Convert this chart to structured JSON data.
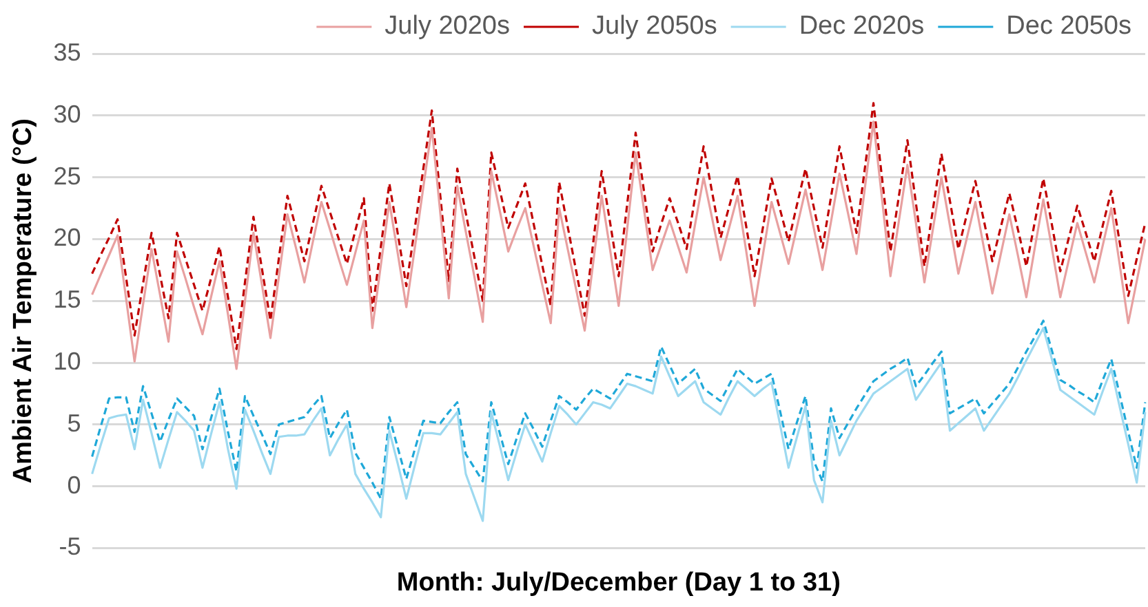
{
  "chart_data": {
    "type": "line",
    "xlabel": "Month: July/December (Day 1 to 31)",
    "ylabel": "Ambient Air Temperature (°C)",
    "ylim": [
      -5,
      35
    ],
    "yticks": [
      -5,
      0,
      5,
      10,
      15,
      20,
      25,
      30,
      35
    ],
    "tick_labels": "y",
    "grid": "y",
    "legend": "top",
    "marker": "none",
    "categories": [
      null,
      null,
      null,
      null,
      null,
      null,
      null,
      null,
      null,
      null,
      null,
      null,
      null,
      null,
      null,
      null,
      null,
      null,
      null,
      null,
      null,
      null,
      null,
      null,
      null,
      null,
      null,
      null,
      null,
      null,
      null,
      null,
      null,
      null,
      null,
      null,
      null,
      null,
      null,
      null,
      null,
      null,
      null,
      null,
      null,
      null,
      null,
      null,
      null,
      null,
      null,
      null,
      null,
      null,
      null,
      null,
      null,
      null,
      null,
      null,
      null,
      null,
      null,
      null,
      null,
      null,
      null,
      null,
      null,
      null,
      null,
      null,
      null,
      null,
      null,
      null,
      null,
      null,
      null,
      null,
      null,
      null,
      null,
      null,
      null,
      null,
      null,
      null,
      null,
      null,
      null,
      null,
      null,
      null,
      null,
      null,
      null,
      null,
      null,
      null,
      null,
      null,
      null,
      null,
      null,
      null,
      null,
      null,
      null,
      null,
      null,
      null,
      null,
      null,
      null,
      null,
      null,
      null,
      null,
      null,
      null,
      null,
      null,
      null,
      null
    ],
    "series": [
      {
        "name": "July 2020s",
        "color": "#e8a0a0",
        "line_style": "solid",
        "values": [
          15.5,
          17.1,
          18.7,
          20.3,
          15.2,
          10.1,
          14.7,
          19.2,
          15.5,
          11.7,
          19,
          16.8,
          14.5,
          12.3,
          15.3,
          18.2,
          13.9,
          9.5,
          15,
          20.5,
          16.3,
          12,
          17,
          22,
          19.3,
          16.5,
          19.8,
          23,
          20.8,
          18.5,
          16.3,
          18.9,
          21.5,
          12.8,
          17.9,
          23,
          18.8,
          14.5,
          19.3,
          24.2,
          29,
          22.1,
          15.2,
          24.3,
          20.6,
          17,
          13.3,
          25.5,
          22.3,
          19,
          20.8,
          22.5,
          19.4,
          16.3,
          13.2,
          22.5,
          19.2,
          15.9,
          12.6,
          18.1,
          23.5,
          19.1,
          14.6,
          20.8,
          27,
          22.3,
          17.5,
          19.5,
          21.5,
          19.4,
          17.3,
          21.2,
          25,
          21.7,
          18.3,
          20.9,
          23.5,
          19.1,
          14.6,
          18.8,
          23,
          20.5,
          18,
          21,
          24,
          20.8,
          17.5,
          21.4,
          25.3,
          22.1,
          18.8,
          24.2,
          29.5,
          23.3,
          17,
          21.5,
          26,
          21.3,
          16.5,
          20.8,
          25,
          21.1,
          17.2,
          20.1,
          23,
          19.3,
          15.6,
          18.8,
          22,
          18.7,
          15.3,
          19.3,
          23.2,
          19.3,
          15.3,
          18.3,
          21.3,
          18.9,
          16.5,
          19.5,
          22.5,
          17.9,
          13.2,
          16.6,
          20
        ]
      },
      {
        "name": "July 2050s",
        "color": "#c00000",
        "line_style": "dashed",
        "values": [
          17.2,
          18.7,
          20.1,
          21.6,
          16.9,
          12.2,
          16.4,
          20.5,
          17.1,
          13.6,
          20.5,
          18.4,
          16.3,
          14.2,
          16.8,
          19.4,
          15.3,
          11.1,
          16.5,
          21.8,
          17.6,
          13.4,
          18.5,
          23.5,
          20.9,
          18.2,
          21.3,
          24.3,
          22.2,
          20.1,
          18,
          20.7,
          23.3,
          14.2,
          19.4,
          24.5,
          20.4,
          16.2,
          20.9,
          25.7,
          30.4,
          23.5,
          16.6,
          25.7,
          22.1,
          18.6,
          15,
          27,
          24,
          20.9,
          22.7,
          24.5,
          21.2,
          17.9,
          14.6,
          24.6,
          21,
          17.4,
          13.8,
          19.7,
          25.5,
          21.3,
          17,
          22.8,
          28.6,
          23.8,
          19,
          21.2,
          23.3,
          21.3,
          19.2,
          23.4,
          27.5,
          23.8,
          20.1,
          22.6,
          25.1,
          21.1,
          17,
          21,
          24.9,
          22.4,
          19.8,
          22.8,
          25.7,
          22.5,
          19.3,
          23.4,
          27.5,
          24,
          20.5,
          25.8,
          31,
          25,
          19,
          23.5,
          28,
          22.9,
          17.8,
          22.4,
          26.9,
          23.1,
          19.2,
          22,
          24.7,
          21.5,
          18.2,
          21,
          23.7,
          20.8,
          17.8,
          21.4,
          24.9,
          21.2,
          17.4,
          20.1,
          22.7,
          20.5,
          18.2,
          21.1,
          23.9,
          19.7,
          15.4,
          18.4,
          21.3
        ]
      },
      {
        "name": "Dec 2020s",
        "color": "#9dd9f0",
        "line_style": "solid",
        "values": [
          1,
          3.3,
          5.5,
          5.7,
          5.8,
          3,
          7,
          4.3,
          1.5,
          3.8,
          6,
          5.3,
          4.5,
          1.5,
          4.2,
          6.8,
          3,
          -0.2,
          6.2,
          4.5,
          2.7,
          1,
          4,
          4.1,
          4.1,
          4.2,
          5.3,
          6.3,
          2.5,
          3.8,
          5,
          1,
          -0.2,
          -1.3,
          -2.5,
          4.5,
          1.8,
          -1,
          1.7,
          4.3,
          4.3,
          4.2,
          5.1,
          6,
          1,
          -0.9,
          -2.8,
          6,
          3.3,
          0.5,
          2.8,
          5,
          3.5,
          2,
          4.3,
          6.5,
          5.8,
          5,
          5.9,
          6.8,
          6.6,
          6.3,
          7.3,
          8.3,
          8.1,
          7.8,
          7.5,
          10.5,
          8.9,
          7.3,
          7.9,
          8.5,
          6.8,
          6.3,
          5.8,
          7.2,
          8.5,
          7.9,
          7.3,
          7.9,
          8.4,
          5,
          1.5,
          4,
          6.5,
          0.5,
          -1.3,
          5.3,
          2.5,
          3.9,
          5.3,
          6.4,
          7.5,
          8,
          8.5,
          9,
          9.5,
          7,
          8,
          9,
          10,
          4.5,
          5.1,
          5.7,
          6.3,
          4.5,
          5.5,
          6.5,
          7.5,
          8.8,
          10.2,
          11.5,
          12.8,
          10.3,
          7.8,
          7.3,
          6.8,
          6.3,
          5.8,
          7.7,
          9.5,
          6.4,
          3.4,
          0.3,
          6
        ]
      },
      {
        "name": "Dec 2050s",
        "color": "#1fa8d8",
        "line_style": "dashed",
        "values": [
          2.4,
          4.8,
          7.1,
          7.2,
          7.2,
          4.4,
          8.1,
          5.9,
          3.6,
          5.4,
          7.1,
          6.4,
          5.7,
          3,
          5.5,
          7.9,
          4.4,
          1.2,
          7.3,
          5.7,
          4.2,
          2.6,
          5,
          5.2,
          5.4,
          5.6,
          6.5,
          7.3,
          3.9,
          5.1,
          6.2,
          2.7,
          1.5,
          0.3,
          -1,
          5.6,
          3.1,
          0.6,
          3,
          5.3,
          5.2,
          5.1,
          6,
          6.8,
          2.6,
          1.5,
          0.4,
          6.8,
          4.3,
          1.8,
          3.9,
          5.9,
          4.6,
          3.2,
          5.3,
          7.3,
          6.8,
          6.2,
          7.1,
          7.9,
          7.5,
          7.1,
          8.1,
          9.1,
          8.9,
          8.7,
          8.5,
          11.3,
          9.8,
          8.3,
          8.9,
          9.5,
          7.9,
          7.4,
          6.9,
          8.2,
          9.5,
          8.9,
          8.3,
          8.7,
          9.1,
          6.1,
          3,
          5.2,
          7.3,
          2,
          0.4,
          6.3,
          3.9,
          5.1,
          6.3,
          7.4,
          8.5,
          9,
          9.5,
          9.9,
          10.4,
          8.1,
          9,
          10,
          10.9,
          5.9,
          6.3,
          6.7,
          7.1,
          5.9,
          6.7,
          7.5,
          8.3,
          9.6,
          10.9,
          12.1,
          13.4,
          11,
          8.6,
          8.2,
          7.7,
          7.3,
          6.8,
          8.6,
          10.3,
          7.4,
          4.4,
          1.5,
          6.8
        ]
      }
    ]
  }
}
